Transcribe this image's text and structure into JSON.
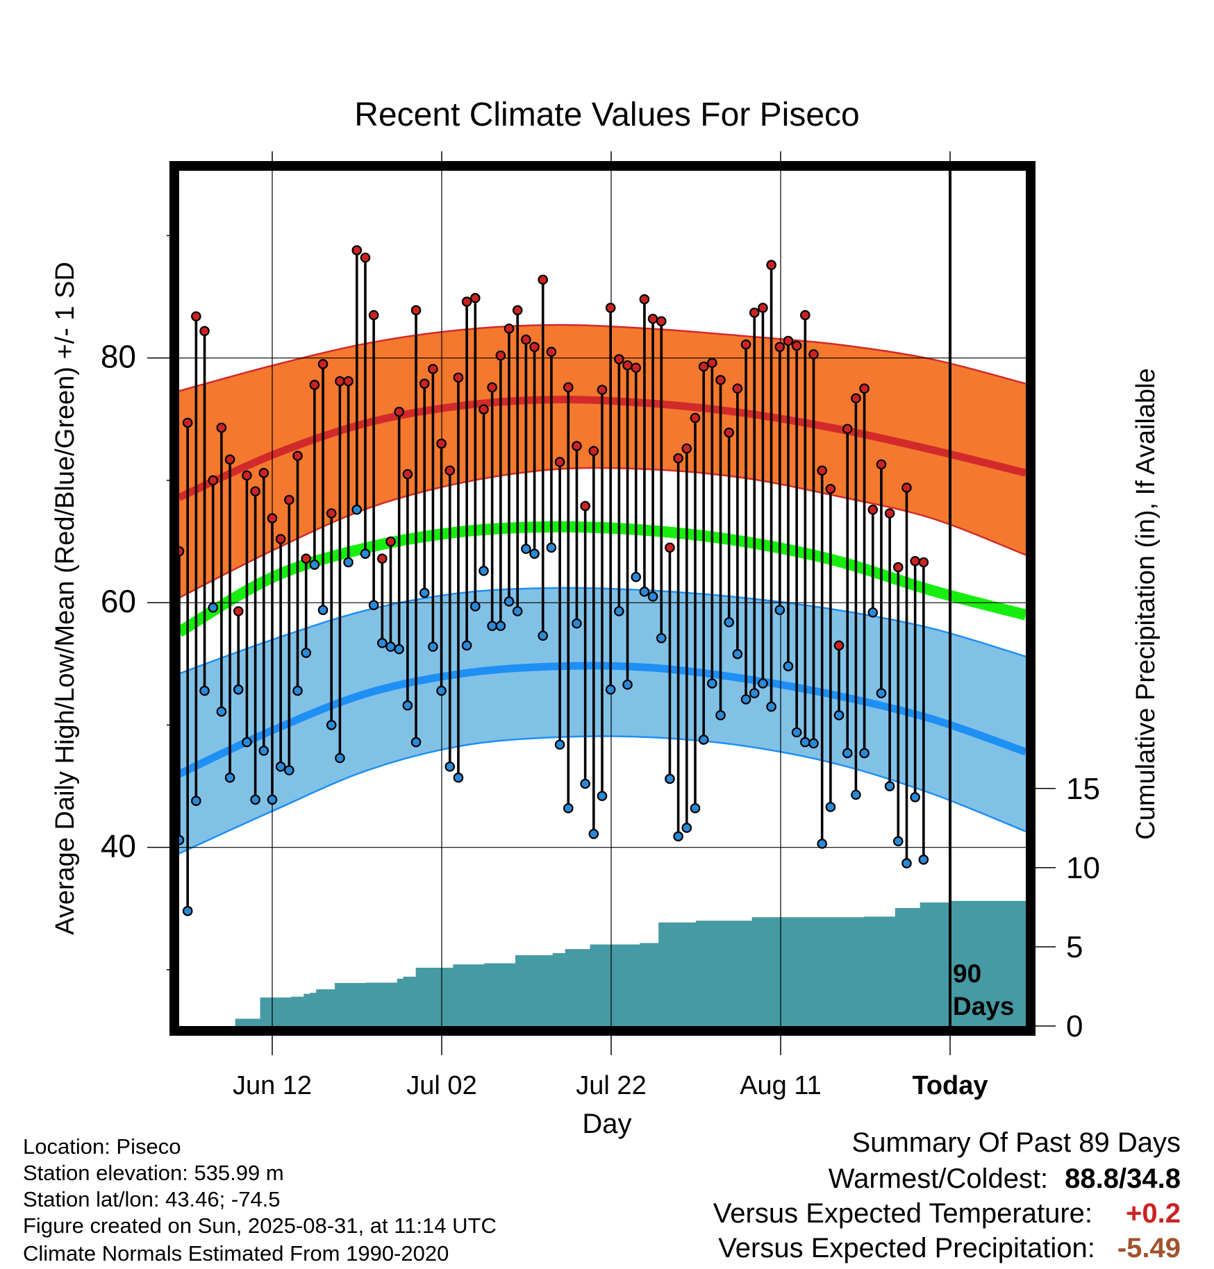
{
  "title": "Recent Climate Values For Piseco",
  "chart_data": {
    "type": "line",
    "title": "Recent Climate Values For Piseco",
    "xlabel": "Day",
    "ylabel": "Average Daily High/Low/Mean (Red/Blue/Green) +/- 1 SD",
    "y2label": "Cumulative Precipitation (in), If Available",
    "x_tick_labels": [
      "Jun 12",
      "Jul 02",
      "Jul 22",
      "Aug 11",
      "Today"
    ],
    "y_ticks": [
      40,
      60,
      80
    ],
    "y2_ticks": [
      0,
      5,
      10,
      15
    ],
    "y2lim": [
      0,
      54
    ],
    "ylim": [
      25.4,
      95.3
    ],
    "today_marker_label": "90\nDays",
    "grid": true,
    "series": [
      {
        "name": "High",
        "values": [
          64.2,
          74.7,
          83.4,
          82.2,
          70.0,
          74.3,
          71.7,
          59.3,
          70.4,
          69.1,
          70.6,
          66.9,
          65.2,
          68.4,
          72.0,
          63.6,
          77.8,
          79.5,
          67.3,
          78.1,
          78.1,
          88.8,
          88.2,
          83.5,
          63.6,
          65.0,
          75.6,
          70.5,
          83.9,
          77.9,
          79.1,
          73.0,
          70.8,
          78.4,
          84.6,
          84.9,
          75.8,
          77.6,
          80.2,
          82.4,
          83.9,
          81.5,
          80.9,
          86.4,
          80.5,
          71.5,
          77.6,
          72.8,
          67.9,
          72.4,
          77.4,
          84.1,
          79.9,
          79.4,
          79.2,
          84.8,
          83.2,
          83.0,
          64.5,
          71.8,
          72.6,
          75.1,
          79.3,
          79.6,
          78.2,
          73.9,
          77.5,
          81.1,
          83.7,
          84.1,
          87.6,
          80.9,
          81.4,
          81.0,
          83.5,
          80.3,
          70.8,
          69.3,
          56.5,
          74.2,
          76.7,
          77.5,
          67.6,
          71.3,
          67.3,
          62.9,
          69.4,
          63.4,
          63.3
        ]
      },
      {
        "name": "Low",
        "values": [
          40.6,
          34.8,
          43.8,
          52.8,
          59.6,
          51.1,
          45.7,
          52.9,
          48.6,
          43.9,
          47.9,
          43.9,
          46.6,
          46.3,
          52.8,
          55.9,
          63.1,
          59.4,
          50.0,
          47.3,
          63.3,
          67.6,
          64.0,
          59.8,
          56.7,
          56.4,
          56.2,
          51.6,
          48.6,
          60.8,
          56.4,
          52.8,
          46.6,
          45.7,
          56.5,
          59.7,
          62.6,
          58.1,
          58.1,
          60.1,
          59.3,
          64.4,
          64.0,
          57.3,
          64.5,
          48.4,
          43.2,
          58.3,
          45.2,
          41.1,
          44.2,
          52.9,
          59.3,
          53.3,
          62.1,
          60.9,
          60.5,
          57.1,
          45.6,
          40.9,
          41.6,
          43.2,
          48.8,
          53.4,
          50.8,
          58.4,
          55.8,
          52.1,
          52.6,
          53.4,
          51.5,
          59.4,
          54.8,
          49.4,
          48.6,
          48.5,
          40.3,
          43.3,
          50.8,
          47.7,
          44.3,
          47.7,
          59.2,
          52.6,
          45.0,
          40.5,
          38.7,
          44.1,
          39.0
        ]
      },
      {
        "name": "Mean",
        "values": [
          57.6,
          62.1,
          64.5,
          65.8,
          66.2,
          65.9,
          65.0,
          63.4,
          61.0,
          59.0
        ]
      },
      {
        "name": "Normal High",
        "values": [
          68.6,
          72.1,
          74.7,
          76.1,
          76.6,
          76.3,
          75.5,
          74.2,
          72.5,
          70.6
        ]
      },
      {
        "name": "Normal High + 1 SD",
        "values": [
          77.3,
          79.4,
          81.2,
          82.3,
          82.7,
          82.4,
          81.8,
          81.1,
          79.9,
          77.9
        ]
      },
      {
        "name": "Normal High - 1 SD",
        "values": [
          60.4,
          64.3,
          67.7,
          69.8,
          70.9,
          70.9,
          70.2,
          68.7,
          66.9,
          63.9
        ]
      },
      {
        "name": "Normal Low",
        "values": [
          46.0,
          49.6,
          52.6,
          54.2,
          54.8,
          54.7,
          53.8,
          52.4,
          50.5,
          47.8
        ]
      },
      {
        "name": "Normal Low + 1 SD",
        "values": [
          54.2,
          57.0,
          59.4,
          60.8,
          61.2,
          61.0,
          60.4,
          59.4,
          57.9,
          55.6
        ]
      },
      {
        "name": "Normal Low - 1 SD",
        "values": [
          39.5,
          43.0,
          46.3,
          48.3,
          49.0,
          49.0,
          48.3,
          46.8,
          44.4,
          41.3
        ]
      },
      {
        "name": "Cumulative Precipitation",
        "values": [
          0,
          0,
          0,
          0,
          0,
          0,
          0,
          0,
          0,
          0.46,
          0.46,
          0.46,
          0.46,
          1.8,
          1.8,
          1.8,
          1.8,
          1.8,
          1.85,
          1.85,
          2.03,
          2.1,
          2.32,
          2.32,
          2.32,
          2.72,
          2.72,
          2.72,
          2.72,
          2.72,
          2.74,
          2.74,
          2.74,
          2.74,
          2.74,
          2.99,
          3.12,
          3.12,
          3.68,
          3.68,
          3.68,
          3.68,
          3.68,
          3.68,
          3.89,
          3.89,
          3.89,
          3.89,
          3.89,
          3.96,
          3.96,
          3.96,
          3.96,
          3.96,
          4.47,
          4.47,
          4.47,
          4.47,
          4.47,
          4.47,
          4.6,
          4.6,
          4.86,
          4.86,
          4.86,
          4.86,
          5.15,
          5.15,
          5.15,
          5.15,
          5.15,
          5.15,
          5.15,
          5.15,
          5.24,
          5.24,
          5.24,
          6.54,
          6.54,
          6.54,
          6.54,
          6.54,
          6.54,
          6.65,
          6.65,
          6.65,
          6.65,
          6.65,
          6.65,
          6.65,
          6.65,
          6.65,
          6.87,
          6.87,
          6.87,
          6.87,
          6.87,
          6.87,
          6.87,
          6.87,
          6.87,
          6.87,
          6.87,
          6.87,
          6.87,
          6.87,
          6.87,
          6.87,
          6.87,
          6.87,
          6.91,
          6.91,
          6.91,
          6.91,
          6.91,
          7.45,
          7.45,
          7.45,
          7.45,
          7.8,
          7.8,
          7.8,
          7.8,
          7.8,
          7.9,
          7.9,
          7.9,
          7.9,
          7.9,
          7.9,
          7.9,
          7.9,
          7.9,
          7.9,
          7.9,
          7.9
        ]
      }
    ]
  },
  "footer": {
    "location": "Location: Piseco",
    "elevation": "Station elevation: 535.99 m",
    "latlon": "Station lat/lon: 43.46; -74.5",
    "created": "Figure created on Sun, 2025-08-31, at 11:14 UTC",
    "normals": "Climate Normals Estimated From 1990-2020"
  },
  "summary": {
    "heading": "Summary Of Past 89 Days",
    "warm_cold_label": "Warmest/Coldest:",
    "warm_cold_value": "88.8/34.8",
    "temp_label": "Versus Expected Temperature:",
    "temp_value": "+0.2",
    "temp_color": "#cc2222",
    "precip_label": "Versus Expected Precipitation:",
    "precip_value": "-5.49",
    "precip_color": "#a0522d"
  },
  "colors": {
    "high_band": "#f4792e",
    "high_line": "#d22a2a",
    "low_band": "#82c1e6",
    "low_line": "#1e8ff4",
    "mean_line": "#17ee0f",
    "precip_fill": "#469aa3",
    "high_marker": "#cc2222",
    "low_marker": "#2a8ad8"
  }
}
